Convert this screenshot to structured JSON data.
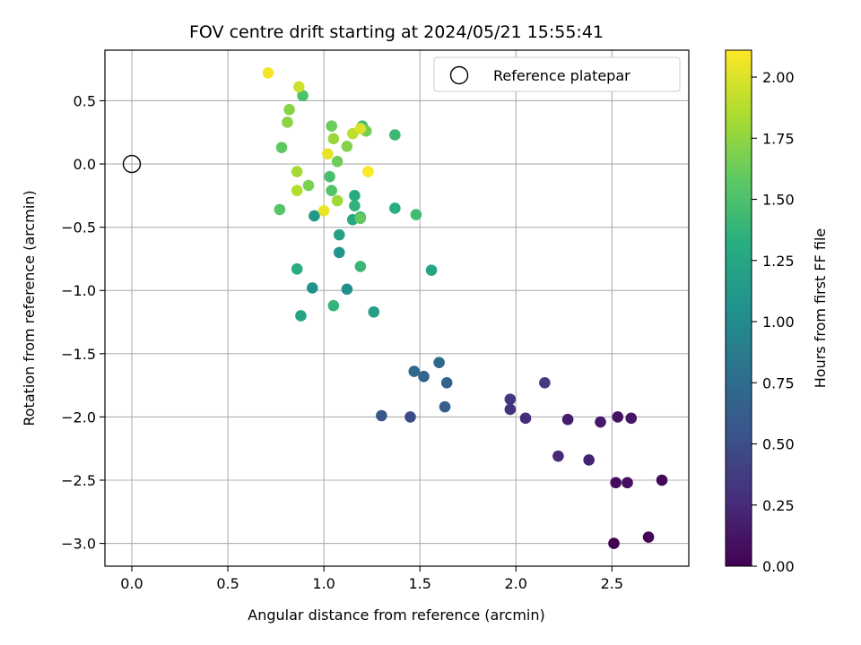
{
  "chart_data": {
    "type": "scatter",
    "title": "FOV centre drift starting at 2024/05/21 15:55:41",
    "xlabel": "Angular distance from reference (arcmin)",
    "ylabel": "Rotation from reference (arcmin)",
    "xlim": [
      -0.14,
      2.9
    ],
    "ylim": [
      -3.18,
      0.9
    ],
    "xticks": [
      0.0,
      0.5,
      1.0,
      1.5,
      2.0,
      2.5
    ],
    "xtick_labels": [
      "0.0",
      "0.5",
      "1.0",
      "1.5",
      "2.0",
      "2.5"
    ],
    "yticks": [
      0.5,
      0.0,
      -0.5,
      -1.0,
      -1.5,
      -2.0,
      -2.5,
      -3.0
    ],
    "ytick_labels": [
      "0.5",
      "0.0",
      "−0.5",
      "−1.0",
      "−1.5",
      "−2.0",
      "−2.5",
      "−3.0"
    ],
    "grid": true,
    "legend": {
      "placement": "top-right",
      "label": "Reference platepar"
    },
    "reference": {
      "x": 0.0,
      "y": 0.0
    },
    "colorbar": {
      "label": "Hours from first FF file",
      "colormap": "viridis",
      "range": [
        0.0,
        2.11
      ],
      "ticks": [
        0.0,
        0.25,
        0.5,
        0.75,
        1.0,
        1.25,
        1.5,
        1.75,
        2.0
      ],
      "tick_labels": [
        "0.00",
        "0.25",
        "0.50",
        "0.75",
        "1.00",
        "1.25",
        "1.50",
        "1.75",
        "2.00"
      ]
    },
    "points": [
      {
        "x": 2.51,
        "y": -3.0,
        "h": 0.0
      },
      {
        "x": 2.69,
        "y": -2.95,
        "h": 0.02
      },
      {
        "x": 2.76,
        "y": -2.5,
        "h": 0.04
      },
      {
        "x": 2.52,
        "y": -2.52,
        "h": 0.06
      },
      {
        "x": 2.58,
        "y": -2.52,
        "h": 0.08
      },
      {
        "x": 2.53,
        "y": -2.0,
        "h": 0.1
      },
      {
        "x": 2.6,
        "y": -2.01,
        "h": 0.12
      },
      {
        "x": 2.44,
        "y": -2.04,
        "h": 0.14
      },
      {
        "x": 2.27,
        "y": -2.02,
        "h": 0.16
      },
      {
        "x": 2.38,
        "y": -2.34,
        "h": 0.2
      },
      {
        "x": 2.22,
        "y": -2.31,
        "h": 0.24
      },
      {
        "x": 2.05,
        "y": -2.01,
        "h": 0.26
      },
      {
        "x": 1.97,
        "y": -1.94,
        "h": 0.3
      },
      {
        "x": 1.97,
        "y": -1.86,
        "h": 0.33
      },
      {
        "x": 2.15,
        "y": -1.73,
        "h": 0.36
      },
      {
        "x": 1.45,
        "y": -2.0,
        "h": 0.48
      },
      {
        "x": 1.3,
        "y": -1.99,
        "h": 0.58
      },
      {
        "x": 1.63,
        "y": -1.92,
        "h": 0.62
      },
      {
        "x": 1.64,
        "y": -1.73,
        "h": 0.66
      },
      {
        "x": 1.52,
        "y": -1.68,
        "h": 0.68
      },
      {
        "x": 1.47,
        "y": -1.64,
        "h": 0.7
      },
      {
        "x": 1.6,
        "y": -1.57,
        "h": 0.72
      },
      {
        "x": 1.12,
        "y": -0.99,
        "h": 1.05
      },
      {
        "x": 0.94,
        "y": -0.98,
        "h": 1.07
      },
      {
        "x": 1.08,
        "y": -0.7,
        "h": 1.1
      },
      {
        "x": 0.95,
        "y": -0.41,
        "h": 1.12
      },
      {
        "x": 1.26,
        "y": -1.17,
        "h": 1.18
      },
      {
        "x": 1.08,
        "y": -0.56,
        "h": 1.2
      },
      {
        "x": 0.88,
        "y": -1.2,
        "h": 1.22
      },
      {
        "x": 1.56,
        "y": -0.84,
        "h": 1.24
      },
      {
        "x": 1.15,
        "y": -0.44,
        "h": 1.26
      },
      {
        "x": 1.16,
        "y": -0.25,
        "h": 1.28
      },
      {
        "x": 0.86,
        "y": -0.83,
        "h": 1.3
      },
      {
        "x": 1.37,
        "y": -0.35,
        "h": 1.32
      },
      {
        "x": 1.19,
        "y": -0.42,
        "h": 1.34
      },
      {
        "x": 1.16,
        "y": -0.33,
        "h": 1.36
      },
      {
        "x": 1.05,
        "y": -1.12,
        "h": 1.38
      },
      {
        "x": 1.19,
        "y": -0.81,
        "h": 1.4
      },
      {
        "x": 1.37,
        "y": 0.23,
        "h": 1.42
      },
      {
        "x": 1.48,
        "y": -0.4,
        "h": 1.44
      },
      {
        "x": 1.2,
        "y": 0.3,
        "h": 1.46
      },
      {
        "x": 1.03,
        "y": -0.1,
        "h": 1.48
      },
      {
        "x": 0.89,
        "y": 0.54,
        "h": 1.5
      },
      {
        "x": 1.04,
        "y": -0.21,
        "h": 1.52
      },
      {
        "x": 0.77,
        "y": -0.36,
        "h": 1.54
      },
      {
        "x": 0.78,
        "y": 0.13,
        "h": 1.58
      },
      {
        "x": 1.19,
        "y": -0.43,
        "h": 1.6
      },
      {
        "x": 1.04,
        "y": 0.3,
        "h": 1.62
      },
      {
        "x": 1.07,
        "y": 0.02,
        "h": 1.64
      },
      {
        "x": 1.22,
        "y": 0.26,
        "h": 1.66
      },
      {
        "x": 0.92,
        "y": -0.17,
        "h": 1.68
      },
      {
        "x": 1.12,
        "y": 0.14,
        "h": 1.7
      },
      {
        "x": 0.82,
        "y": 0.43,
        "h": 1.72
      },
      {
        "x": 0.81,
        "y": 0.33,
        "h": 1.74
      },
      {
        "x": 1.05,
        "y": 0.2,
        "h": 1.78
      },
      {
        "x": 1.07,
        "y": -0.29,
        "h": 1.8
      },
      {
        "x": 0.86,
        "y": -0.06,
        "h": 1.82
      },
      {
        "x": 0.86,
        "y": -0.21,
        "h": 1.86
      },
      {
        "x": 1.15,
        "y": 0.24,
        "h": 1.9
      },
      {
        "x": 0.87,
        "y": 0.61,
        "h": 1.95
      },
      {
        "x": 1.19,
        "y": 0.28,
        "h": 2.0
      },
      {
        "x": 1.02,
        "y": 0.08,
        "h": 2.03
      },
      {
        "x": 1.0,
        "y": -0.37,
        "h": 2.05
      },
      {
        "x": 0.71,
        "y": 0.72,
        "h": 2.08
      },
      {
        "x": 1.23,
        "y": -0.06,
        "h": 2.1
      }
    ]
  }
}
